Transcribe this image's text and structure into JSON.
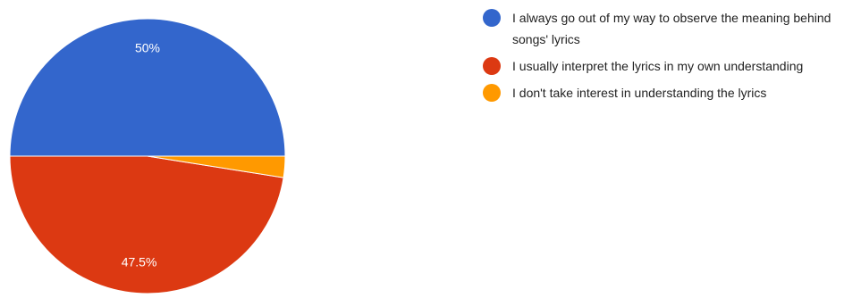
{
  "chart_data": {
    "type": "pie",
    "title": "",
    "slices": [
      {
        "name": "I always go out of my way to observe the meaning behind songs' lyrics",
        "value": 50,
        "label": "50%",
        "color": "#3366cc"
      },
      {
        "name": "I usually interpret the lyrics in my own understanding",
        "value": 47.5,
        "label": "47.5%",
        "color": "#dc3912"
      },
      {
        "name": "I don't take interest in understanding the lyrics",
        "value": 2.5,
        "label": "",
        "color": "#ff9900"
      }
    ],
    "legend_position": "right"
  }
}
